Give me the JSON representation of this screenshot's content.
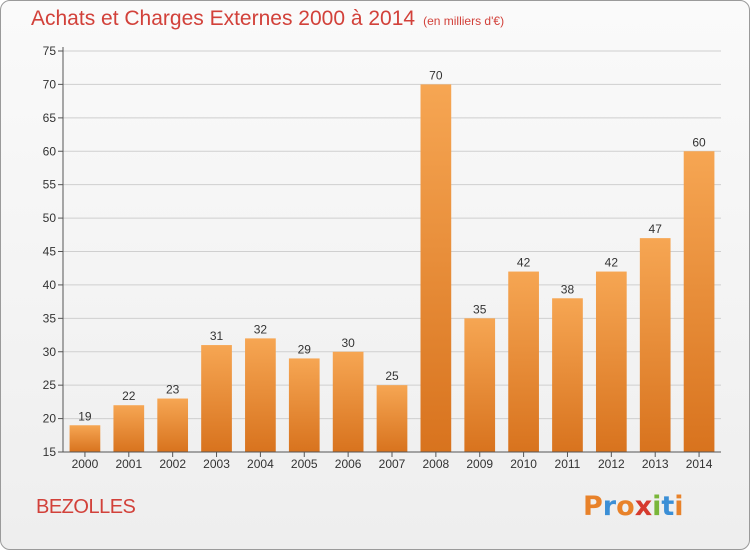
{
  "header": {
    "title": "Achats et Charges Externes 2000 à 2014",
    "subtitle": "(en milliers d'€)"
  },
  "footer": {
    "commune": "BEZOLLES",
    "logo_text": "Proxiti",
    "logo_colors": [
      "#e8822a",
      "#3b8fd6",
      "#e8822a",
      "#d63a2e",
      "#7ab63a",
      "#3b8fd6",
      "#e8822a"
    ]
  },
  "colors": {
    "bar_top": "#f6a653",
    "bar_bottom": "#d8731e",
    "accent": "#d2413a",
    "grid": "#cfcfcf"
  },
  "chart_data": {
    "type": "bar",
    "categories": [
      "2000",
      "2001",
      "2002",
      "2003",
      "2004",
      "2005",
      "2006",
      "2007",
      "2008",
      "2009",
      "2010",
      "2011",
      "2012",
      "2013",
      "2014"
    ],
    "values": [
      19,
      22,
      23,
      31,
      32,
      29,
      30,
      25,
      70,
      35,
      42,
      38,
      42,
      47,
      60
    ],
    "title": "Achats et Charges Externes 2000 à 2014",
    "subtitle": "(en milliers d'€)",
    "xlabel": "",
    "ylabel": "",
    "ylim": [
      15,
      75
    ],
    "yticks": [
      15,
      20,
      25,
      30,
      35,
      40,
      45,
      50,
      55,
      60,
      65,
      70,
      75
    ],
    "grid": true
  }
}
